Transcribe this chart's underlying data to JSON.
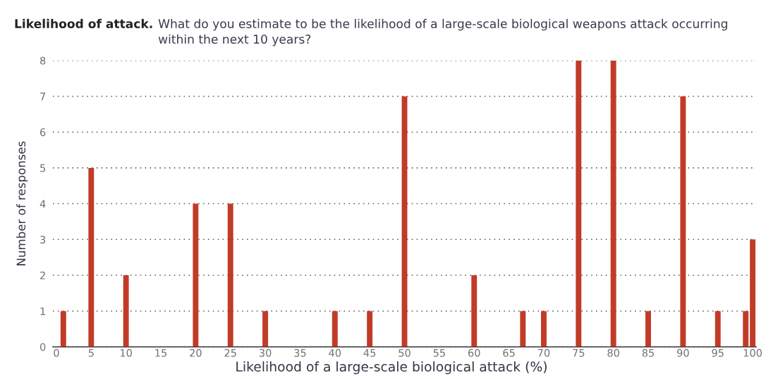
{
  "chart_data": {
    "type": "bar",
    "title": "Likelihood of attack.",
    "subtitle": "What do you estimate to be the likelihood of a large-scale biological weapons attack occurring\nwithin the next 10 years?",
    "xlabel": "Likelihood of a large-scale biological attack (%)",
    "ylabel": "Number of responses",
    "x": [
      1,
      5,
      10,
      20,
      25,
      30,
      40,
      45,
      50,
      60,
      67,
      70,
      75,
      80,
      85,
      90,
      95,
      99,
      100
    ],
    "values": [
      1,
      5,
      2,
      4,
      4,
      1,
      1,
      1,
      7,
      2,
      1,
      1,
      8,
      8,
      1,
      7,
      1,
      1,
      3
    ],
    "color": "#c13b27",
    "xlim": [
      -0.5,
      100.5
    ],
    "xticks": [
      0,
      5,
      10,
      15,
      20,
      25,
      30,
      35,
      40,
      45,
      50,
      55,
      60,
      65,
      70,
      75,
      80,
      85,
      90,
      95,
      100
    ],
    "ylim": [
      0,
      8
    ],
    "yticks": [
      0,
      1,
      2,
      3,
      4,
      5,
      6,
      7,
      8
    ],
    "grid": "y"
  }
}
